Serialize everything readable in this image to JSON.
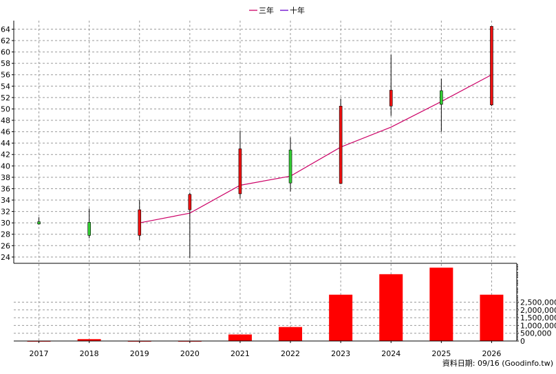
{
  "legend": {
    "items": [
      {
        "label": "三年",
        "color": "#cc0066"
      },
      {
        "label": "十年",
        "color": "#6600cc"
      }
    ]
  },
  "footer": {
    "source": "資料日期: 09/16  (Goodinfo.tw)"
  },
  "chart_data": [
    {
      "type": "candlestick",
      "x": [
        "2017",
        "2018",
        "2019",
        "2020",
        "2021",
        "2022",
        "2023",
        "2024",
        "2025",
        "2026"
      ],
      "ohlc": [
        {
          "open": 29.8,
          "high": 31.0,
          "low": 29.7,
          "close": 30.2
        },
        {
          "open": 27.8,
          "high": 32.5,
          "low": 27.3,
          "close": 30.1
        },
        {
          "open": 32.3,
          "high": 34.0,
          "low": 27.0,
          "close": 27.8
        },
        {
          "open": 35.0,
          "high": 35.3,
          "low": 23.8,
          "close": 32.3
        },
        {
          "open": 43.0,
          "high": 46.2,
          "low": 34.3,
          "close": 35.1
        },
        {
          "open": 37.0,
          "high": 45.0,
          "low": 35.5,
          "close": 42.8
        },
        {
          "open": 50.5,
          "high": 51.8,
          "low": 36.8,
          "close": 36.9
        },
        {
          "open": 53.3,
          "high": 59.5,
          "low": 48.8,
          "close": 50.5
        },
        {
          "open": 50.8,
          "high": 55.3,
          "low": 46.0,
          "close": 53.2
        },
        {
          "open": 64.5,
          "high": 64.5,
          "low": 50.5,
          "close": 50.7
        }
      ],
      "up_color": "#33cc33",
      "down_color": "#ee1111",
      "lines": [
        {
          "name": "三年",
          "color": "#cc0066",
          "values": [
            null,
            null,
            30.0,
            31.7,
            36.6,
            38.2,
            43.3,
            46.8,
            51.3,
            56.0
          ]
        }
      ],
      "yticks": [
        24,
        26,
        28,
        30,
        32,
        34,
        36,
        38,
        40,
        42,
        44,
        46,
        48,
        50,
        52,
        54,
        56,
        58,
        60,
        62,
        64
      ],
      "ylim": [
        22.9,
        65.5
      ],
      "grid": true,
      "legend_position": "top-center"
    },
    {
      "type": "bar",
      "categories": [
        "2017",
        "2018",
        "2019",
        "2020",
        "2021",
        "2022",
        "2023",
        "2024",
        "2025",
        "2026"
      ],
      "values": [
        2000,
        120000,
        2000,
        2000,
        420000,
        900000,
        2980000,
        4300000,
        4720000,
        2980000
      ],
      "color": "#ff0000",
      "yticks": [
        0,
        500000,
        1000000,
        1500000,
        2000000,
        2500000
      ],
      "ytick_labels": [
        "0",
        "500,000",
        "1,000,000",
        "1,500,000",
        "2,000,000",
        "2,500,000"
      ],
      "ylim": [
        0,
        5000000
      ],
      "grid": true
    }
  ]
}
